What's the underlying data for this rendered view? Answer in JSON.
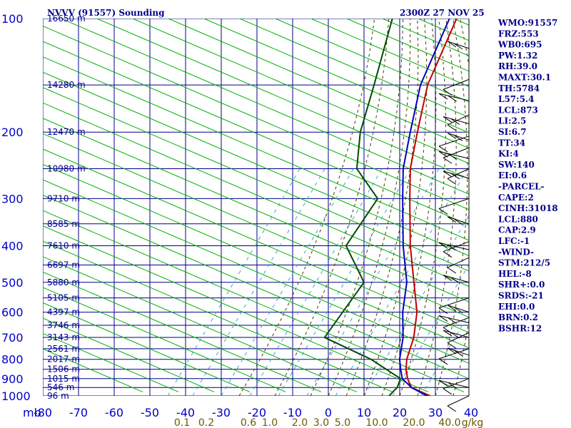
{
  "chart_data": {
    "type": "skew-t",
    "title_left": "NVVV (91557) Sounding",
    "title_right": "2300Z 27 NOV 25",
    "y_unit_label": "mb",
    "pressure_levels": [
      100,
      200,
      300,
      400,
      500,
      600,
      700,
      800,
      900,
      1000
    ],
    "temperature_ticks": [
      "-80",
      "-70",
      "-60",
      "-50",
      "-40",
      "-30",
      "-20",
      "-10",
      "0",
      "10",
      "20",
      "30",
      "40"
    ],
    "mixing_ratio_ticks": [
      "0.1",
      "0.2",
      "0.6",
      "1.0",
      "2.0",
      "3.0",
      "5.0",
      "10.0",
      "20.0",
      "40.0",
      "g/kg"
    ],
    "height_labels": [
      {
        "p": 100,
        "label": "16650 m"
      },
      {
        "p": 150,
        "label": "14280 m"
      },
      {
        "p": 200,
        "label": "12470 m"
      },
      {
        "p": 250,
        "label": "10980 m"
      },
      {
        "p": 300,
        "label": "9710 m"
      },
      {
        "p": 350,
        "label": "8585 m"
      },
      {
        "p": 400,
        "label": "7610 m"
      },
      {
        "p": 450,
        "label": "6697 m"
      },
      {
        "p": 500,
        "label": "5880 m"
      },
      {
        "p": 550,
        "label": "5105 m"
      },
      {
        "p": 600,
        "label": "4397 m"
      },
      {
        "p": 650,
        "label": "3746 m"
      },
      {
        "p": 700,
        "label": "3143 m"
      },
      {
        "p": 750,
        "label": "2561 m"
      },
      {
        "p": 800,
        "label": "2017 m"
      },
      {
        "p": 850,
        "label": "1506 m"
      },
      {
        "p": 900,
        "label": "1015 m"
      },
      {
        "p": 950,
        "label": "546 m"
      },
      {
        "p": 1000,
        "label": "96 m"
      }
    ],
    "series": [
      {
        "name": "temperature",
        "color": "#c00000",
        "points": [
          [
            1003,
            29
          ],
          [
            950,
            21
          ],
          [
            900,
            17.5
          ],
          [
            850,
            14.5
          ],
          [
            800,
            12
          ],
          [
            700,
            8
          ],
          [
            600,
            2
          ],
          [
            500,
            -7
          ],
          [
            400,
            -18
          ],
          [
            300,
            -31
          ],
          [
            250,
            -39
          ],
          [
            200,
            -47
          ],
          [
            150,
            -57
          ],
          [
            100,
            -67
          ]
        ]
      },
      {
        "name": "parcel",
        "color": "#0000c0",
        "points": [
          [
            1003,
            28
          ],
          [
            950,
            21
          ],
          [
            900,
            16
          ],
          [
            850,
            13
          ],
          [
            800,
            10
          ],
          [
            700,
            5
          ],
          [
            600,
            -2
          ],
          [
            500,
            -9
          ],
          [
            400,
            -20
          ],
          [
            300,
            -33
          ],
          [
            250,
            -41
          ],
          [
            200,
            -49
          ],
          [
            150,
            -59
          ],
          [
            100,
            -69
          ]
        ]
      },
      {
        "name": "dewpoint",
        "color": "#004d00",
        "points": [
          [
            1003,
            17
          ],
          [
            950,
            17
          ],
          [
            900,
            15.5
          ],
          [
            800,
            2
          ],
          [
            700,
            -17
          ],
          [
            500,
            -21
          ],
          [
            400,
            -36
          ],
          [
            300,
            -40
          ],
          [
            250,
            -54
          ],
          [
            200,
            -63
          ],
          [
            150,
            -72
          ],
          [
            100,
            -85
          ]
        ]
      }
    ],
    "wind_barb_levels": [
      120,
      145,
      165,
      180,
      190,
      205,
      210,
      220,
      235,
      250,
      265,
      300,
      350,
      390,
      410,
      430,
      500,
      550,
      600,
      620,
      640,
      680,
      700,
      750,
      780,
      900,
      950,
      1000
    ]
  },
  "indices": [
    "WMO:91557",
    "FRZ:553",
    "WB0:695",
    "PW:1.32",
    "RH:39.0",
    "MAXT:30.1",
    "TH:5784",
    "L57:5.4",
    "LCL:873",
    "LI:2.5",
    "SI:6.7",
    "TT:34",
    "KI:4",
    "SW:140",
    "EI:0.6",
    "-PARCEL-",
    "CAPE:2",
    "CINH:31018",
    "LCL:880",
    "CAP:2.9",
    "LFC:-1",
    "-WIND-",
    "STM:212/5",
    "HEL:-8",
    "SHR+:0.0",
    "SRDS:-21",
    "EHI:0.0",
    "BRN:0.2",
    "BSHR:12"
  ],
  "colors": {
    "grid": "#00008b",
    "dry_adiabat": "#00b000",
    "moist_adiabat": "#4b3a00",
    "mixing_ratio": "#3aa0e0",
    "temperature": "#c00000",
    "parcel": "#0000c0",
    "dewpoint": "#004d00",
    "wind": "#000000"
  }
}
